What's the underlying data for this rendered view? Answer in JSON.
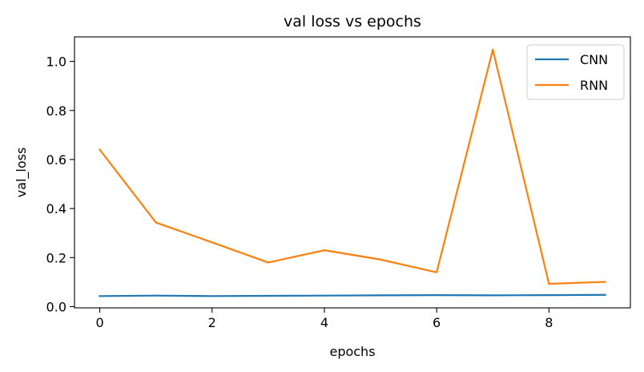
{
  "chart_data": {
    "type": "line",
    "title": "val loss vs epochs",
    "xlabel": "epochs",
    "ylabel": "val_loss",
    "x": [
      0,
      1,
      2,
      3,
      4,
      5,
      6,
      7,
      8,
      9
    ],
    "xlim": [
      -0.45,
      9.45
    ],
    "ylim": [
      -0.005,
      1.1
    ],
    "xticks": [
      0,
      2,
      4,
      6,
      8
    ],
    "yticks": [
      0.0,
      0.2,
      0.4,
      0.6,
      0.8,
      1.0
    ],
    "xtick_labels": [
      "0",
      "2",
      "4",
      "6",
      "8"
    ],
    "ytick_labels": [
      "0.0",
      "0.2",
      "0.4",
      "0.6",
      "0.8",
      "1.0"
    ],
    "grid": false,
    "legend_position": "top-right",
    "series": [
      {
        "name": "CNN",
        "color": "#1f77b4",
        "values": [
          0.043,
          0.045,
          0.043,
          0.044,
          0.045,
          0.046,
          0.047,
          0.046,
          0.047,
          0.048
        ]
      },
      {
        "name": "RNN",
        "color": "#ff7f0e",
        "values": [
          0.64,
          0.343,
          0.262,
          0.18,
          0.23,
          0.192,
          0.14,
          1.048,
          0.093,
          0.101
        ]
      }
    ]
  }
}
